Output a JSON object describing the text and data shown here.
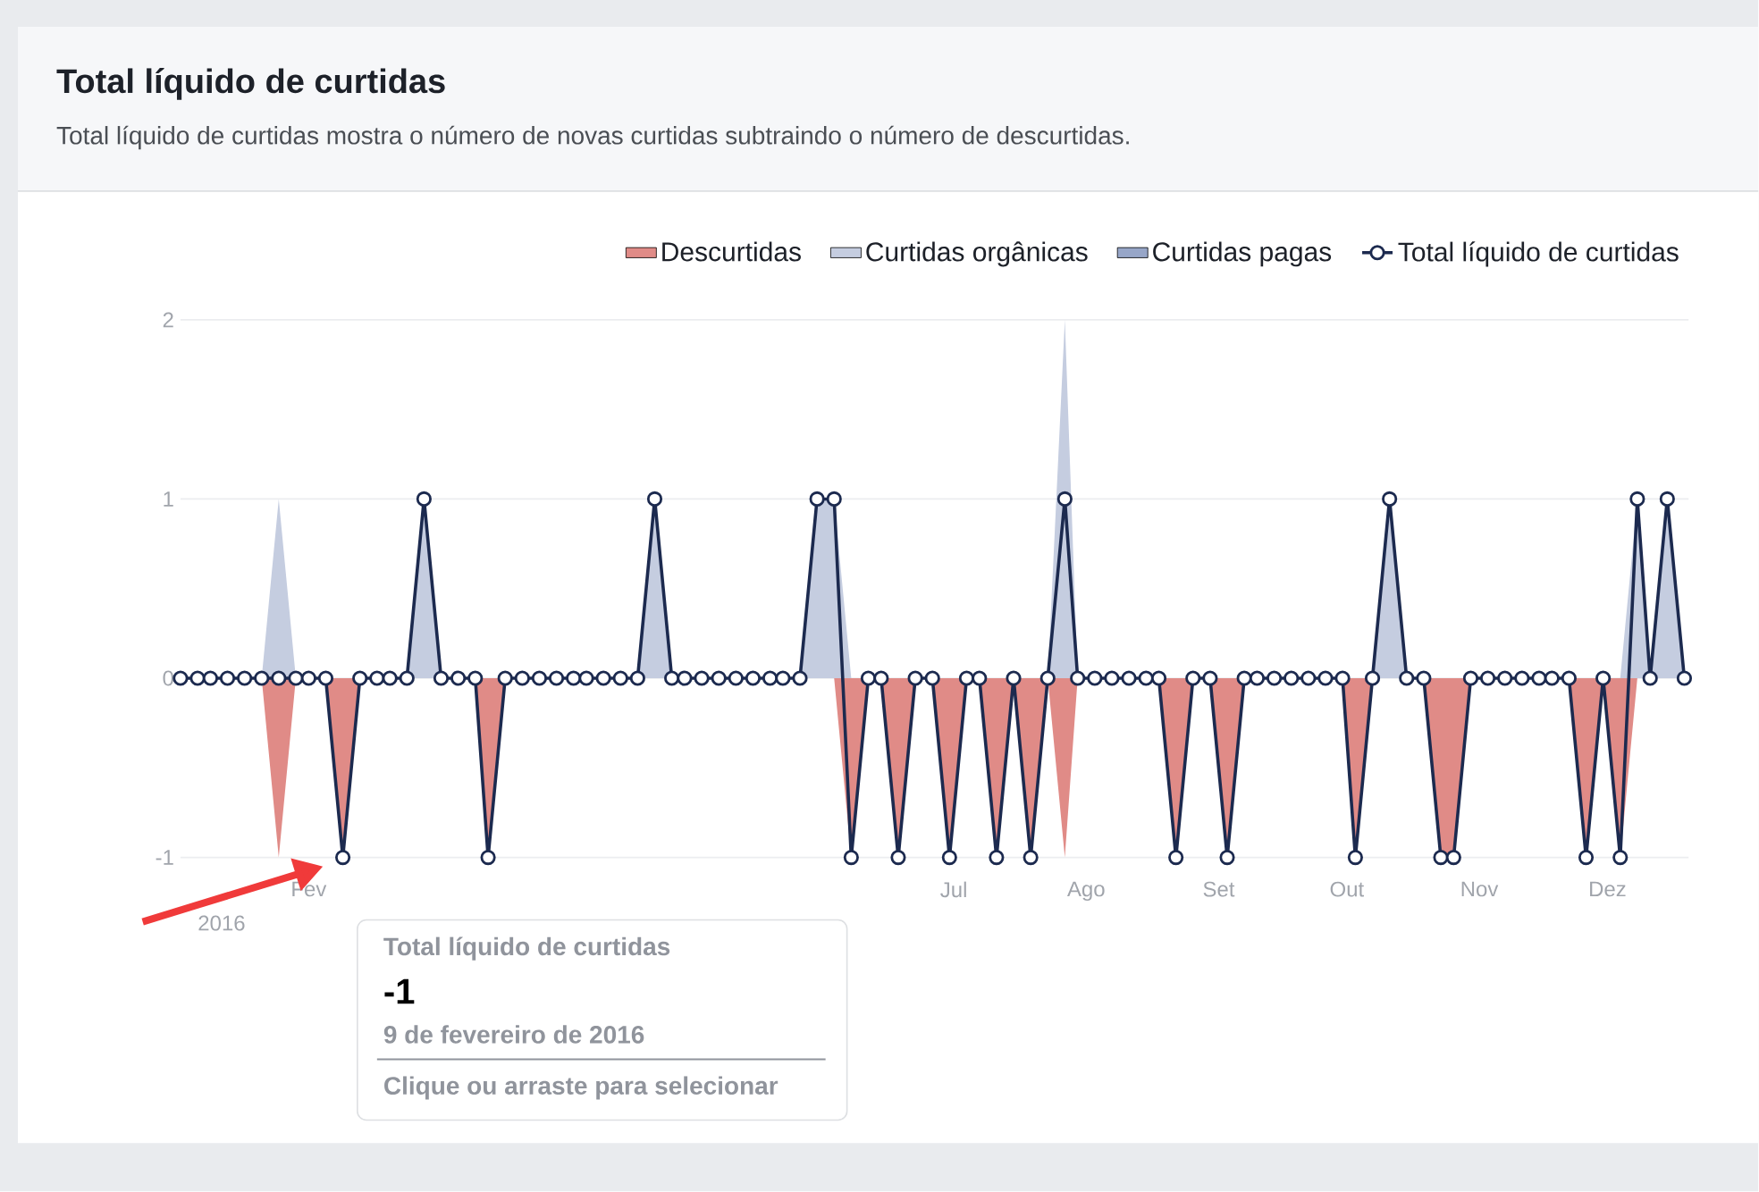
{
  "chart_data": {
    "type": "area",
    "title": "Total líquido de curtidas",
    "subtitle": "Total líquido de curtidas mostra o número de novas curtidas subtraindo o número de descurtidas.",
    "x": [
      "2016-01-02",
      "2016-01-06",
      "2016-01-09",
      "2016-01-13",
      "2016-01-17",
      "2016-01-21",
      "2016-01-25",
      "2016-01-29",
      "2016-02-01",
      "2016-02-05",
      "2016-02-09",
      "2016-02-13",
      "2016-02-17",
      "2016-02-20",
      "2016-02-24",
      "2016-02-28",
      "2016-03-03",
      "2016-03-07",
      "2016-03-11",
      "2016-03-14",
      "2016-03-18",
      "2016-03-22",
      "2016-03-26",
      "2016-03-30",
      "2016-04-03",
      "2016-04-06",
      "2016-04-10",
      "2016-04-14",
      "2016-04-18",
      "2016-04-22",
      "2016-04-26",
      "2016-04-29",
      "2016-05-03",
      "2016-05-07",
      "2016-05-11",
      "2016-05-15",
      "2016-05-19",
      "2016-05-22",
      "2016-05-26",
      "2016-05-30",
      "2016-06-03",
      "2016-06-07",
      "2016-06-11",
      "2016-06-14",
      "2016-06-18",
      "2016-06-22",
      "2016-06-26",
      "2016-06-30",
      "2016-07-04",
      "2016-07-07",
      "2016-07-11",
      "2016-07-15",
      "2016-07-19",
      "2016-07-23",
      "2016-07-27",
      "2016-07-30",
      "2016-08-03",
      "2016-08-07",
      "2016-08-11",
      "2016-08-15",
      "2016-08-18",
      "2016-08-22",
      "2016-08-26",
      "2016-08-30",
      "2016-09-03",
      "2016-09-07",
      "2016-09-10",
      "2016-09-14",
      "2016-09-18",
      "2016-09-22",
      "2016-09-26",
      "2016-09-30",
      "2016-10-03",
      "2016-10-07",
      "2016-10-11",
      "2016-10-15",
      "2016-10-19",
      "2016-10-23",
      "2016-10-26",
      "2016-10-30",
      "2016-11-03",
      "2016-11-07",
      "2016-11-11",
      "2016-11-15",
      "2016-11-18",
      "2016-11-22",
      "2016-11-26",
      "2016-11-30",
      "2016-12-04",
      "2016-12-08",
      "2016-12-11",
      "2016-12-15",
      "2016-12-19"
    ],
    "series": [
      {
        "name": "Descurtidas",
        "color": "#e08b87",
        "values": [
          0,
          0,
          0,
          0,
          0,
          0,
          -1,
          0,
          0,
          0,
          -1,
          0,
          0,
          0,
          0,
          0,
          0,
          0,
          0,
          -1,
          0,
          0,
          0,
          0,
          0,
          0,
          0,
          0,
          0,
          0,
          0,
          0,
          0,
          0,
          0,
          0,
          0,
          0,
          0,
          0,
          0,
          -1,
          0,
          0,
          -1,
          0,
          0,
          -1,
          0,
          0,
          -1,
          0,
          -1,
          0,
          -1,
          0,
          0,
          0,
          0,
          0,
          0,
          -1,
          0,
          0,
          -1,
          0,
          0,
          0,
          0,
          0,
          0,
          0,
          -1,
          0,
          0,
          0,
          0,
          -1,
          -1,
          0,
          0,
          0,
          0,
          0,
          0,
          0,
          -1,
          0,
          -1,
          0,
          0,
          0,
          0
        ]
      },
      {
        "name": "Curtidas orgânicas",
        "color": "#c5cde0",
        "values": [
          0,
          0,
          0,
          0,
          0,
          0,
          1,
          0,
          0,
          0,
          0,
          0,
          0,
          0,
          0,
          1,
          0,
          0,
          0,
          0,
          0,
          0,
          0,
          0,
          0,
          0,
          0,
          0,
          0,
          1,
          0,
          0,
          0,
          0,
          0,
          0,
          0,
          0,
          0,
          1,
          1,
          0,
          0,
          0,
          0,
          0,
          0,
          0,
          0,
          0,
          0,
          0,
          0,
          0,
          2,
          0,
          0,
          0,
          0,
          0,
          0,
          0,
          0,
          0,
          0,
          0,
          0,
          0,
          0,
          0,
          0,
          0,
          0,
          0,
          1,
          0,
          0,
          0,
          0,
          0,
          0,
          0,
          0,
          0,
          0,
          0,
          0,
          0,
          0,
          1,
          0,
          1,
          0
        ]
      },
      {
        "name": "Curtidas pagas",
        "color": "#97a6c8",
        "values": [
          null,
          null,
          null,
          null,
          null,
          null,
          null,
          null,
          null,
          null,
          null,
          null,
          null,
          null,
          null,
          null,
          null,
          null,
          null,
          null,
          null,
          null,
          null,
          null,
          null,
          null,
          null,
          null,
          null,
          null,
          null,
          null,
          null,
          null,
          null,
          null,
          null,
          null,
          null,
          null,
          null,
          null,
          null,
          null,
          null,
          null,
          null,
          null,
          null,
          null,
          null,
          null,
          null,
          null,
          null,
          null,
          null,
          null,
          null,
          null,
          null,
          null,
          null,
          null,
          null,
          null,
          null,
          null,
          null,
          null,
          null,
          null,
          null,
          null,
          null,
          null,
          null,
          null,
          null,
          null,
          null,
          null,
          null,
          null,
          null,
          null,
          null,
          null,
          null,
          null,
          null,
          null,
          null
        ]
      },
      {
        "name": "Total líquido de curtidas",
        "type": "line",
        "marker": "circle",
        "color": "#1c2a4f",
        "values": [
          0,
          0,
          0,
          0,
          0,
          0,
          0,
          0,
          0,
          0,
          -1,
          0,
          0,
          0,
          0,
          1,
          0,
          0,
          0,
          -1,
          0,
          0,
          0,
          0,
          0,
          0,
          0,
          0,
          0,
          1,
          0,
          0,
          0,
          0,
          0,
          0,
          0,
          0,
          0,
          1,
          1,
          -1,
          0,
          0,
          -1,
          0,
          0,
          -1,
          0,
          0,
          -1,
          0,
          -1,
          0,
          1,
          0,
          0,
          0,
          0,
          0,
          0,
          -1,
          0,
          0,
          -1,
          0,
          0,
          0,
          0,
          0,
          0,
          0,
          -1,
          0,
          1,
          0,
          0,
          -1,
          -1,
          0,
          0,
          0,
          0,
          0,
          0,
          0,
          -1,
          0,
          -1,
          1,
          0,
          1,
          0
        ]
      }
    ],
    "xlim": [
      "2016-01-02",
      "2016-12-20"
    ],
    "xticks": [
      {
        "value": "2016-02-01",
        "label": "Fev"
      },
      {
        "value": "2016-07-01",
        "label": "Jul"
      },
      {
        "value": "2016-08-01",
        "label": "Ago"
      },
      {
        "value": "2016-09-01",
        "label": "Set"
      },
      {
        "value": "2016-10-01",
        "label": "Out"
      },
      {
        "value": "2016-11-01",
        "label": "Nov"
      },
      {
        "value": "2016-12-01",
        "label": "Dez"
      }
    ],
    "ylim": [
      -1,
      2
    ],
    "yticks": [
      -1,
      0,
      1,
      2
    ],
    "grid": "y",
    "legend": "top right",
    "annotations": [
      "2016",
      "Total líquido de curtidas",
      "-1",
      "9 de fevereiro de 2016",
      "Clique ou arraste para selecionar"
    ]
  }
}
